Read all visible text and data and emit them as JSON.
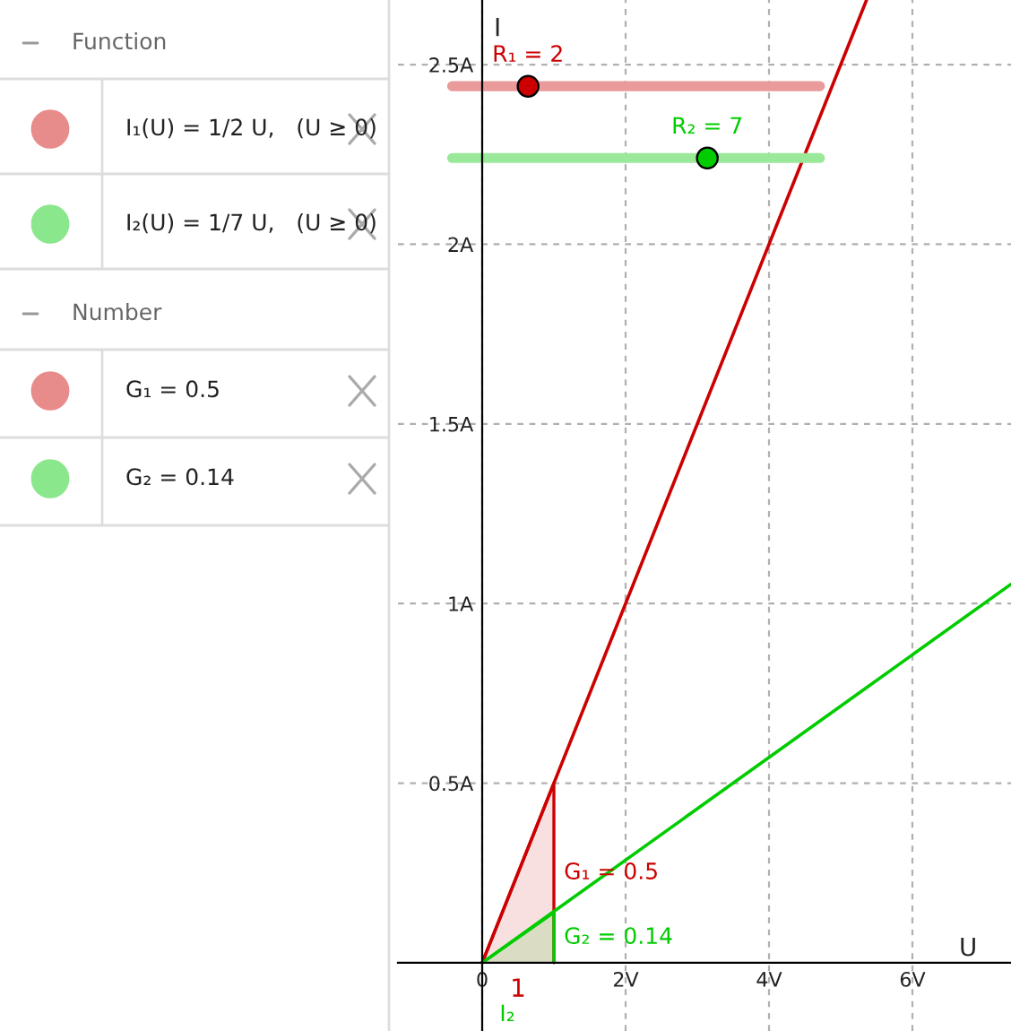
{
  "chart_data": {
    "type": "line",
    "xlabel": "U",
    "ylabel": "I",
    "xlim": [
      -1.175,
      7.375
    ],
    "ylim": [
      -0.19,
      2.68
    ],
    "xticks": [
      {
        "value": 0,
        "label": "0"
      },
      {
        "value": 2,
        "label": "2V"
      },
      {
        "value": 4,
        "label": "4V"
      },
      {
        "value": 6,
        "label": "6V"
      }
    ],
    "yticks": [
      {
        "value": 0.5,
        "label": "0.5A"
      },
      {
        "value": 1,
        "label": "1A"
      },
      {
        "value": 1.5,
        "label": "1.5A"
      },
      {
        "value": 2,
        "label": "2A"
      },
      {
        "value": 2.5,
        "label": "2.5A"
      }
    ],
    "grid": true,
    "series": [
      {
        "type": "area",
        "color": "#cc0000",
        "x": [
          0,
          1
        ],
        "values": [
          0,
          0.5
        ]
      },
      {
        "type": "area",
        "color": "#00cc00",
        "x": [
          0,
          1
        ],
        "values": [
          0,
          0.14
        ]
      },
      {
        "color": "#cc0000",
        "x": [
          0,
          5.36
        ],
        "values": [
          0,
          2.68
        ]
      },
      {
        "color": "#00cc00",
        "x": [
          0,
          7.37
        ],
        "values": [
          0,
          1.053
        ]
      },
      {
        "type": "line",
        "color": "#e99a9a",
        "x": [
          -0.42,
          4.71
        ],
        "values": [
          2.44,
          2.44
        ]
      },
      {
        "type": "line",
        "color": "#9ae89a",
        "x": [
          -0.42,
          4.71
        ],
        "values": [
          2.24,
          2.24
        ]
      },
      {
        "type": "scatter",
        "color": "#cc0000",
        "x": [
          0.64
        ],
        "values": [
          2.44
        ]
      },
      {
        "type": "scatter",
        "color": "#00cc00",
        "x": [
          3.14
        ],
        "values": [
          2.24
        ]
      }
    ],
    "annotations": [
      "Function",
      "I₁(U) = 1/2 U,   (U ≥ 0)",
      "I₂(U) = 1/7 U,   (U ≥ 0)",
      "Number",
      "G₁ = 0.5",
      "G₂ = 0.14",
      {
        "text": "R₁ = 2",
        "x": 0.64,
        "y": 2.44
      },
      {
        "text": "R₂ = 7",
        "x": 3.14,
        "y": 2.24
      },
      {
        "text": "G₁ = 0.5",
        "x": 1,
        "y": 0.25
      },
      {
        "text": "G₂ = 0.14",
        "x": 1,
        "y": 0.07
      },
      {
        "text": "1",
        "x": 0.5,
        "y": 0
      },
      "I₂"
    ]
  }
}
